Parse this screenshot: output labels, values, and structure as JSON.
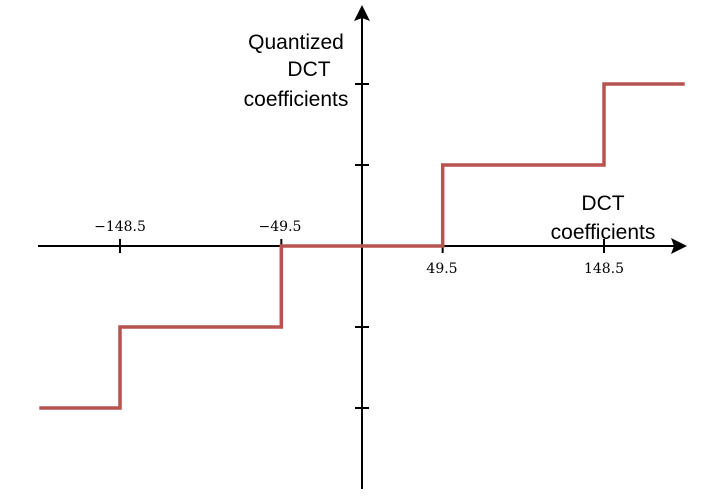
{
  "y_axis_title": [
    "Quantized",
    "DCT",
    "coefficients"
  ],
  "x_axis_title": [
    "DCT",
    "coefficients"
  ],
  "x_tick_labels": {
    "neg_148_5": "−148.5",
    "neg_49_5": "−49.5",
    "pos_49_5": "49.5",
    "pos_148_5": "148.5"
  },
  "colors": {
    "curve": "#b85450",
    "axes": "#000000"
  },
  "chart_data": {
    "type": "line",
    "step": true,
    "x_ticks": [
      -148.5,
      -49.5,
      49.5,
      148.5
    ],
    "y_ticks": [
      -2,
      -1,
      1,
      2
    ],
    "series": [
      {
        "points": [
          [
            -198,
            -2
          ],
          [
            -148.5,
            -2
          ],
          [
            -148.5,
            -1
          ],
          [
            -49.5,
            -1
          ],
          [
            -49.5,
            0
          ],
          [
            49.5,
            0
          ],
          [
            49.5,
            1
          ],
          [
            148.5,
            1
          ],
          [
            148.5,
            2
          ],
          [
            198,
            2
          ]
        ]
      }
    ]
  }
}
